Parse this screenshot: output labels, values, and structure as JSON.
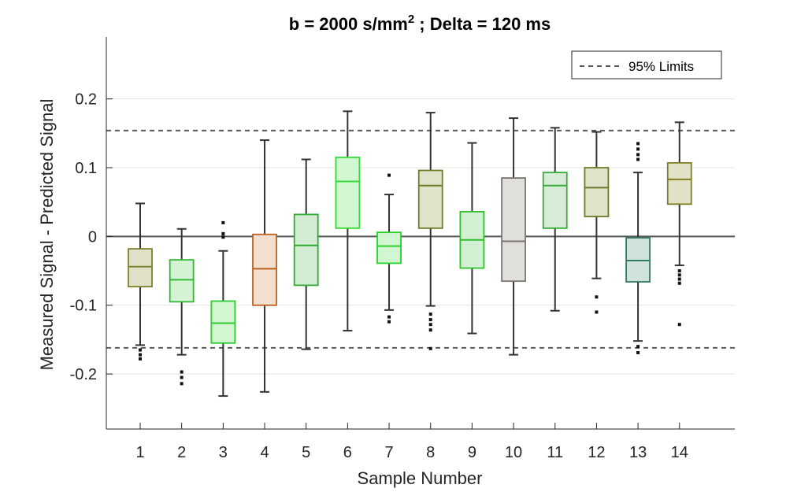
{
  "chart_data": {
    "type": "boxplot",
    "title_main": "b = 2000 s/mm",
    "title_sup": "2",
    "title_tail": " ; Delta = 120 ms",
    "xlabel": "Sample Number",
    "ylabel": "Measured Signal - Predicted Signal",
    "ylim": [
      -0.28,
      0.29
    ],
    "yticks": [
      -0.2,
      -0.1,
      0,
      0.1,
      0.2
    ],
    "ytick_labels": [
      "-0.2",
      "-0.1",
      "0",
      "0.1",
      "0.2"
    ],
    "grid": "horizontal",
    "zero_line": 0,
    "limits": {
      "name": "95% Limits",
      "upper": 0.154,
      "lower": -0.162,
      "style": "dashed",
      "color": "#595959"
    },
    "legend_position": "top-right",
    "boxes": [
      {
        "label": "1",
        "color": "#7f7f2e",
        "fill": "#e1e1ca",
        "whisker_low": -0.158,
        "q1": -0.073,
        "median": -0.044,
        "q3": -0.018,
        "whisker_high": 0.048,
        "outliers": [
          -0.165,
          -0.172,
          -0.178
        ]
      },
      {
        "label": "2",
        "color": "#35b935",
        "fill": "#d4f2d4",
        "whisker_low": -0.172,
        "q1": -0.095,
        "median": -0.063,
        "q3": -0.034,
        "whisker_high": 0.011,
        "outliers": [
          -0.197,
          -0.205,
          -0.214
        ]
      },
      {
        "label": "3",
        "color": "#2ecc2e",
        "fill": "#d2f5d2",
        "whisker_low": -0.232,
        "q1": -0.155,
        "median": -0.126,
        "q3": -0.094,
        "whisker_high": -0.021,
        "outliers": [
          0.02,
          0.004,
          -0.001
        ]
      },
      {
        "label": "4",
        "color": "#b8611e",
        "fill": "#f3dfcd",
        "whisker_low": -0.226,
        "q1": -0.1,
        "median": -0.047,
        "q3": 0.003,
        "whisker_high": 0.14,
        "outliers": []
      },
      {
        "label": "5",
        "color": "#2faa2f",
        "fill": "#d4ecd4",
        "whisker_low": -0.164,
        "q1": -0.071,
        "median": -0.013,
        "q3": 0.032,
        "whisker_high": 0.112,
        "outliers": []
      },
      {
        "label": "6",
        "color": "#33dd33",
        "fill": "#d3f7d3",
        "whisker_low": -0.137,
        "q1": 0.012,
        "median": 0.08,
        "q3": 0.115,
        "whisker_high": 0.182,
        "outliers": []
      },
      {
        "label": "7",
        "color": "#2cd02c",
        "fill": "#d2f5d2",
        "whisker_low": -0.107,
        "q1": -0.039,
        "median": -0.014,
        "q3": 0.006,
        "whisker_high": 0.061,
        "outliers": [
          0.089,
          -0.117,
          -0.124
        ]
      },
      {
        "label": "8",
        "color": "#707a2a",
        "fill": "#dfe3c9",
        "whisker_low": -0.101,
        "q1": 0.012,
        "median": 0.074,
        "q3": 0.096,
        "whisker_high": 0.18,
        "outliers": [
          -0.113,
          -0.121,
          -0.128,
          -0.136,
          -0.163
        ]
      },
      {
        "label": "9",
        "color": "#2fbf2f",
        "fill": "#d3f0d3",
        "whisker_low": -0.141,
        "q1": -0.046,
        "median": -0.005,
        "q3": 0.036,
        "whisker_high": 0.136,
        "outliers": []
      },
      {
        "label": "10",
        "color": "#7a766c",
        "fill": "#e0dfdb",
        "whisker_low": -0.172,
        "q1": -0.065,
        "median": -0.007,
        "q3": 0.085,
        "whisker_high": 0.172,
        "outliers": []
      },
      {
        "label": "11",
        "color": "#3aaa3a",
        "fill": "#d6ecd6",
        "whisker_low": -0.108,
        "q1": 0.012,
        "median": 0.074,
        "q3": 0.093,
        "whisker_high": 0.158,
        "outliers": []
      },
      {
        "label": "12",
        "color": "#6b7a2a",
        "fill": "#dee3c9",
        "whisker_low": -0.061,
        "q1": 0.029,
        "median": 0.071,
        "q3": 0.1,
        "whisker_high": 0.152,
        "outliers": [
          -0.088,
          -0.11
        ]
      },
      {
        "label": "13",
        "color": "#2f7a60",
        "fill": "#cfe3dc",
        "whisker_low": -0.152,
        "q1": -0.066,
        "median": -0.035,
        "q3": -0.002,
        "whisker_high": 0.093,
        "outliers": [
          0.135,
          0.127,
          0.119,
          0.112,
          -0.16,
          -0.169
        ]
      },
      {
        "label": "14",
        "color": "#7f7f22",
        "fill": "#e1e1c8",
        "whisker_low": -0.042,
        "q1": 0.047,
        "median": 0.083,
        "q3": 0.107,
        "whisker_high": 0.166,
        "outliers": [
          -0.05,
          -0.056,
          -0.062,
          -0.068,
          -0.128
        ]
      }
    ]
  }
}
